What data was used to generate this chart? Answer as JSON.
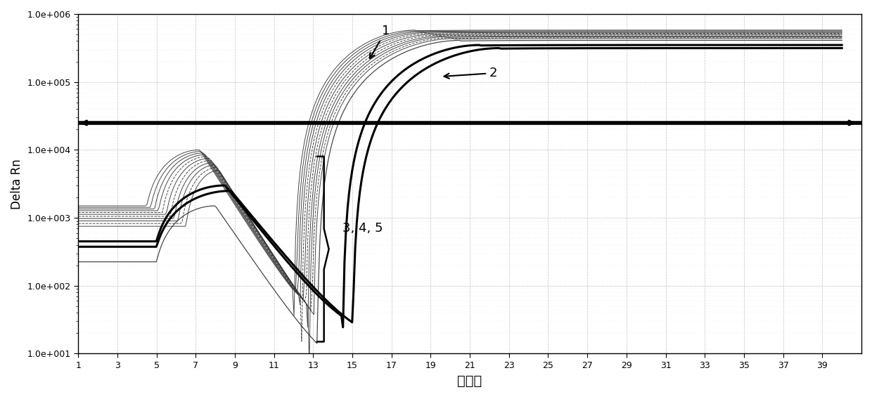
{
  "title": "",
  "xlabel": "循环数",
  "ylabel": "Delta Rn",
  "xlim": [
    1,
    41
  ],
  "ylim_log": [
    10,
    1000000
  ],
  "x_ticks": [
    1,
    3,
    5,
    7,
    9,
    11,
    13,
    15,
    17,
    19,
    21,
    23,
    25,
    27,
    29,
    31,
    33,
    35,
    37,
    39
  ],
  "y_ticks_log": [
    10,
    100,
    1000,
    10000,
    100000,
    1000000
  ],
  "y_tick_labels": [
    "1.0e+001",
    "1.0e+002",
    "1.0e+003",
    "1.0e+004",
    "1.0e+005",
    "1.0e+006"
  ],
  "threshold_y": 25000,
  "background_color": "#ffffff",
  "grid_color": "#bbbbbb",
  "annotation_fontsize": 13,
  "label1_text": "1",
  "label2_text": "2",
  "label345_text": "3, 4, 5"
}
